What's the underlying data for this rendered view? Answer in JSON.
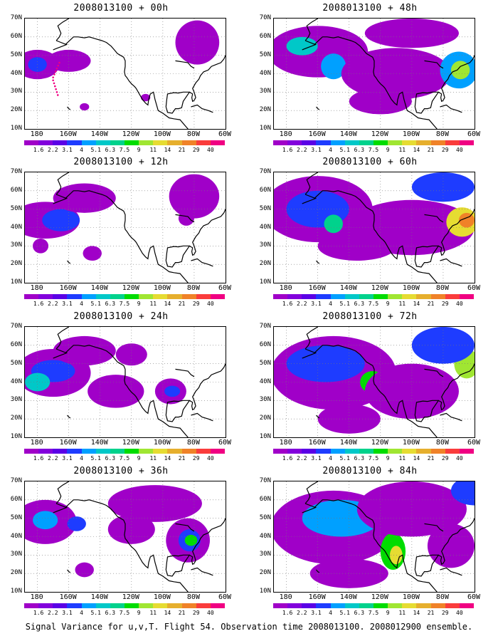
{
  "panels": [
    {
      "title": "2008013100 + 00h"
    },
    {
      "title": "2008013100 + 12h"
    },
    {
      "title": "2008013100 + 24h"
    },
    {
      "title": "2008013100 + 36h"
    },
    {
      "title": "2008013100 + 48h"
    },
    {
      "title": "2008013100 + 60h"
    },
    {
      "title": "2008013100 + 72h"
    },
    {
      "title": "2008013100 + 84h"
    }
  ],
  "y_ticks": [
    "70N",
    "60N",
    "50N",
    "40N",
    "30N",
    "20N",
    "10N"
  ],
  "x_ticks": [
    "180",
    "160W",
    "140W",
    "120W",
    "100W",
    "80W",
    "60W"
  ],
  "colorbar": {
    "labels": [
      "1.6",
      "2.2",
      "3.1",
      "4",
      "5.1",
      "6.3",
      "7.5",
      "9",
      "11",
      "14",
      "21",
      "29",
      "40"
    ],
    "colors": [
      "#a000c8",
      "#8200dc",
      "#5a00e6",
      "#1e3cff",
      "#00a0ff",
      "#00c8c8",
      "#00d28c",
      "#00dc00",
      "#a0e632",
      "#e6dc32",
      "#e6af2d",
      "#f08228",
      "#fa3c3c",
      "#f00082"
    ]
  },
  "caption": "Signal Variance for u,v,T. Flight 54. Observation time 2008013100. 2008012900 ensemble."
}
